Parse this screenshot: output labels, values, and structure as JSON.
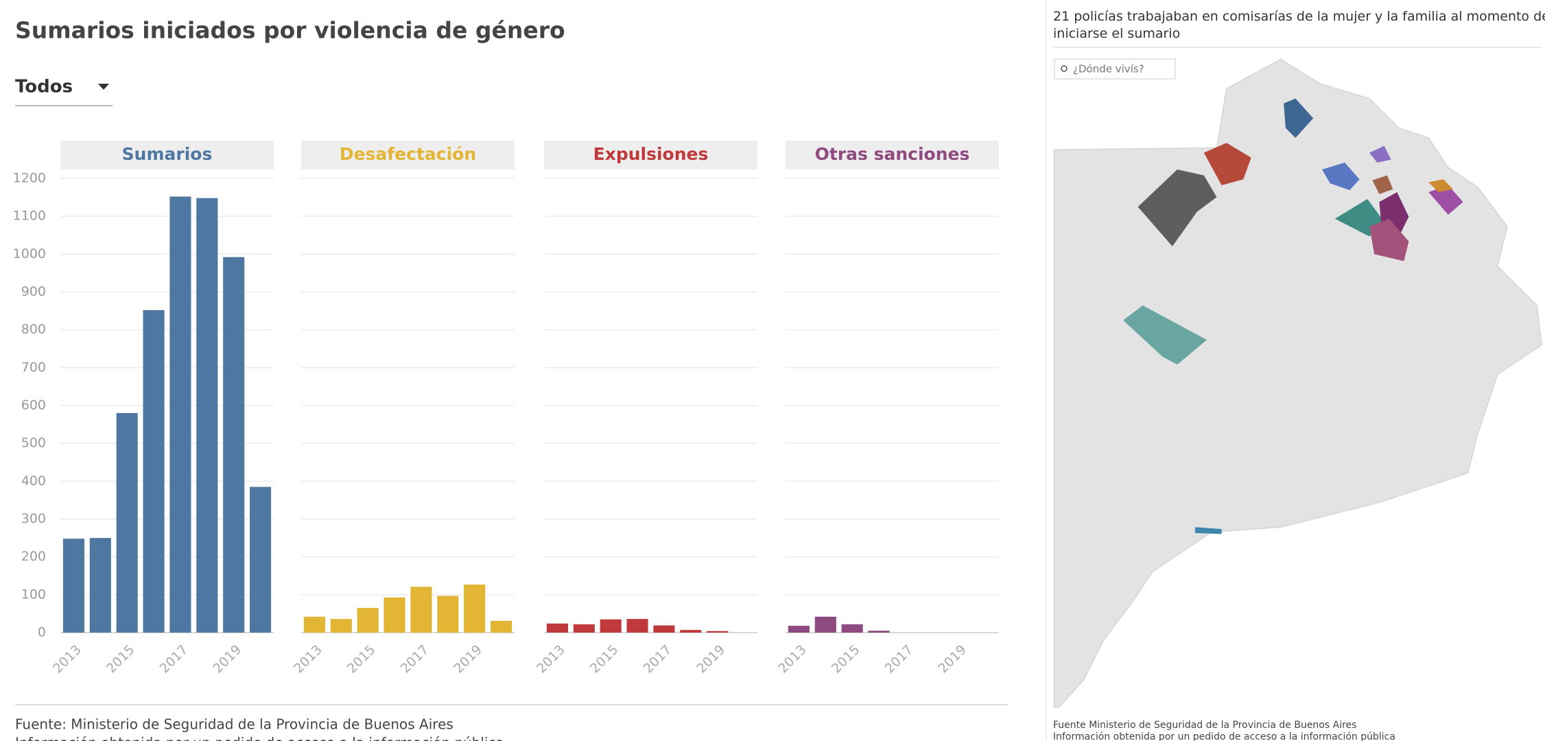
{
  "header": {
    "title": "Sumarios iniciados por violencia de género",
    "dropdown": "Todos"
  },
  "chart_data": [
    {
      "type": "bar",
      "title": "Sumarios",
      "color": "#4e77a2",
      "categories": [
        "2013",
        null,
        "2015",
        null,
        "2017",
        null,
        "2019",
        null
      ],
      "values": [
        248,
        250,
        580,
        852,
        1152,
        1148,
        992,
        385
      ],
      "ylim": [
        0,
        1200
      ],
      "yticks": [
        0,
        100,
        200,
        300,
        400,
        500,
        600,
        700,
        800,
        900,
        1000,
        1100,
        1200
      ],
      "grid": true
    },
    {
      "type": "bar",
      "title": "Desafectación",
      "color": "#e2b534",
      "categories": [
        "2013",
        null,
        "2015",
        null,
        "2017",
        null,
        "2019",
        null
      ],
      "values": [
        42,
        36,
        65,
        93,
        121,
        97,
        127,
        31
      ],
      "ylim": [
        0,
        1200
      ],
      "yticks": [
        0,
        100,
        200,
        300,
        400,
        500,
        600,
        700,
        800,
        900,
        1000,
        1100,
        1200
      ],
      "grid": true
    },
    {
      "type": "bar",
      "title": "Expulsiones",
      "color": "#c0393b",
      "categories": [
        "2013",
        null,
        "2015",
        null,
        "2017",
        null,
        "2019",
        null
      ],
      "values": [
        24,
        22,
        35,
        36,
        19,
        7,
        4,
        0
      ],
      "ylim": [
        0,
        1200
      ],
      "yticks": [
        0,
        100,
        200,
        300,
        400,
        500,
        600,
        700,
        800,
        900,
        1000,
        1100,
        1200
      ],
      "grid": true
    },
    {
      "type": "bar",
      "title": "Otras sanciones",
      "color": "#8e4b80",
      "categories": [
        "2013",
        null,
        "2015",
        null,
        "2017",
        null,
        "2019",
        null
      ],
      "values": [
        18,
        42,
        22,
        5,
        0,
        0,
        0,
        0
      ],
      "ylim": [
        0,
        1200
      ],
      "yticks": [
        0,
        100,
        200,
        300,
        400,
        500,
        600,
        700,
        800,
        900,
        1000,
        1100,
        1200
      ],
      "grid": true
    }
  ],
  "footer": {
    "source": "Fuente: Ministerio de Seguridad de la Provincia de Buenos Aires",
    "note": "Información obtenida por un pedido de acceso a la información pública"
  },
  "map": {
    "title": "21 policías trabajaban en comisarías de la mujer y la familia al momento de iniciarse el sumario",
    "search": "¿Dónde vivís?",
    "source": "Fuente Ministerio de Seguridad de la Provincia de Buenos Aires",
    "note": "Información obtenida por un pedido de acceso a la información pública"
  }
}
